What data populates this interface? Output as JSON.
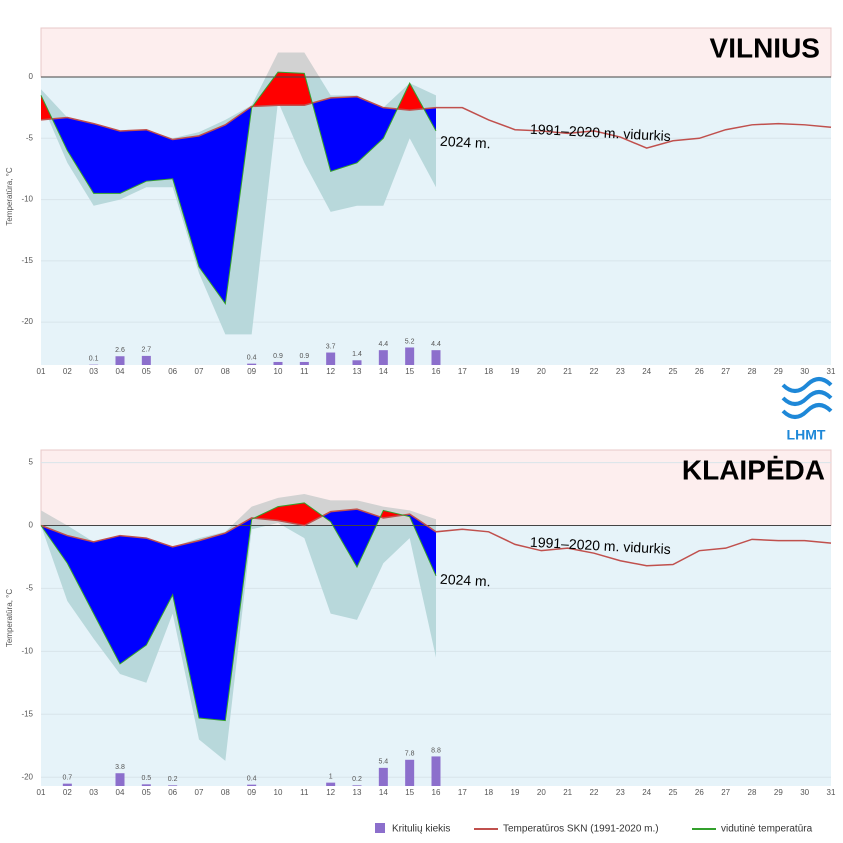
{
  "logo": "LHMT",
  "chart_data": [
    {
      "type": "line",
      "title": "VILNIUS",
      "y_label": "Temperatūra, °C",
      "categories": [
        "01",
        "02",
        "03",
        "04",
        "05",
        "06",
        "07",
        "08",
        "09",
        "10",
        "11",
        "12",
        "13",
        "14",
        "15",
        "16",
        "17",
        "18",
        "19",
        "20",
        "21",
        "22",
        "23",
        "24",
        "25",
        "26",
        "27",
        "28",
        "29",
        "30",
        "31"
      ],
      "ylim": [
        -23.5,
        4
      ],
      "yticks": [
        -20,
        -15,
        -10,
        -5,
        0
      ],
      "y2lim": [
        0,
        100
      ],
      "grid": true,
      "annotations": [
        "1991–2020 m. vidurkis",
        "2024 m."
      ],
      "fill_colors": {
        "above": "#ff0000",
        "below": "#0000ff"
      },
      "band": {
        "color_above": "#d2d2d2",
        "color_below": "#b8d8db",
        "low": [
          -2,
          -7,
          -10.5,
          -10,
          -9,
          -9,
          -16,
          -21,
          -21,
          -2,
          -7,
          -11,
          -10.5,
          -10.5,
          -5,
          -9,
          null,
          null,
          null,
          null,
          null,
          null,
          null,
          null,
          null,
          null,
          null,
          null,
          null,
          null,
          null
        ],
        "high": [
          -1,
          -3.3,
          -4,
          -4.4,
          -4.3,
          -5,
          -4.5,
          -3.5,
          -2.3,
          2,
          2,
          -1.5,
          -1.5,
          -2.5,
          -0.5,
          -1.5,
          null,
          null,
          null,
          null,
          null,
          null,
          null,
          null,
          null,
          null,
          null,
          null,
          null,
          null,
          null
        ]
      },
      "series": [
        {
          "type": "bar",
          "axis": "y2",
          "color": "#8c6fcc",
          "values": [
            null,
            null,
            0.1,
            2.6,
            2.7,
            null,
            null,
            null,
            0.4,
            0.9,
            0.9,
            3.7,
            1.4,
            4.4,
            5.2,
            4.4,
            null,
            null,
            null,
            null,
            null,
            null,
            null,
            null,
            null,
            null,
            null,
            null,
            null,
            null,
            null
          ]
        },
        {
          "type": "line",
          "color": "#c0504d",
          "values": [
            -3.5,
            -3.3,
            -3.8,
            -4.4,
            -4.3,
            -5.1,
            -4.8,
            -3.9,
            -2.4,
            -2.3,
            -2.3,
            -1.7,
            -1.6,
            -2.5,
            -2.7,
            -2.5,
            -2.5,
            -3.5,
            -4.3,
            -4.4,
            -4.6,
            -4.4,
            -4.9,
            -5.8,
            -5.2,
            -5.0,
            -4.3,
            -3.9,
            -3.8,
            -3.9,
            -4.1
          ]
        },
        {
          "type": "line",
          "color": "#33a02c",
          "values": [
            -1.5,
            -6,
            -9.5,
            -9.5,
            -8.5,
            -8.3,
            -15.5,
            -18.5,
            -2.5,
            0.4,
            0.3,
            -7.7,
            -7,
            -5,
            -0.5,
            -4.4,
            null,
            null,
            null,
            null,
            null,
            null,
            null,
            null,
            null,
            null,
            null,
            null,
            null,
            null,
            null
          ]
        }
      ]
    },
    {
      "type": "line",
      "title": "KLAIPĖDA",
      "y_label": "Temperatūra, °C",
      "categories": [
        "01",
        "02",
        "03",
        "04",
        "05",
        "06",
        "07",
        "08",
        "09",
        "10",
        "11",
        "12",
        "13",
        "14",
        "15",
        "16",
        "17",
        "18",
        "19",
        "20",
        "21",
        "22",
        "23",
        "24",
        "25",
        "26",
        "27",
        "28",
        "29",
        "30",
        "31"
      ],
      "ylim": [
        -20.7,
        6
      ],
      "yticks": [
        -20,
        -15,
        -10,
        -5,
        0,
        5
      ],
      "y2lim": [
        0,
        100
      ],
      "grid": true,
      "annotations": [
        "1991–2020 m. vidurkis",
        "2024 m."
      ],
      "fill_colors": {
        "above": "#ff0000",
        "below": "#0000ff"
      },
      "band": {
        "color_above": "#d2d2d2",
        "color_below": "#b8d8db",
        "low": [
          0,
          -6,
          -9,
          -11.8,
          -12.5,
          -7,
          -17,
          -18.7,
          -0.3,
          0.2,
          -1,
          -7,
          -7.5,
          -3,
          -1,
          -10.5,
          null,
          null,
          null,
          null,
          null,
          null,
          null,
          null,
          null,
          null,
          null,
          null,
          null,
          null,
          null
        ],
        "high": [
          1.2,
          0,
          -1.3,
          -0.8,
          -1,
          -1.7,
          -1,
          -0.5,
          1.5,
          2.2,
          2.5,
          2,
          2,
          1.5,
          1.2,
          0.5,
          null,
          null,
          null,
          null,
          null,
          null,
          null,
          null,
          null,
          null,
          null,
          null,
          null,
          null,
          null
        ]
      },
      "series": [
        {
          "name": "Kritulių kiekis",
          "type": "bar",
          "axis": "y2",
          "color": "#8c6fcc",
          "values": [
            null,
            0.7,
            null,
            3.8,
            0.5,
            0.2,
            null,
            null,
            0.4,
            null,
            null,
            1,
            0.2,
            5.4,
            7.8,
            8.8,
            null,
            null,
            null,
            null,
            null,
            null,
            null,
            null,
            null,
            null,
            null,
            null,
            null,
            null,
            null
          ]
        },
        {
          "name": "Temperatūros SKN (1991-2020 m.)",
          "type": "line",
          "color": "#c0504d",
          "values": [
            0,
            -0.8,
            -1.3,
            -0.8,
            -1.0,
            -1.7,
            -1.2,
            -0.6,
            0.6,
            0.4,
            0,
            1.1,
            1.3,
            0.6,
            0.9,
            -0.5,
            -0.3,
            -0.5,
            -1.5,
            -2.0,
            -1.8,
            -2.2,
            -2.8,
            -3.2,
            -3.1,
            -2.0,
            -1.8,
            -1.1,
            -1.2,
            -1.2,
            -1.4
          ]
        },
        {
          "name": "vidutinė temperatūra",
          "type": "line",
          "color": "#33a02c",
          "values": [
            0,
            -3,
            -7,
            -11,
            -9.5,
            -5.5,
            -15.3,
            -15.5,
            0.5,
            1.5,
            1.8,
            0.3,
            -3.3,
            1.2,
            0.7,
            -4,
            null,
            null,
            null,
            null,
            null,
            null,
            null,
            null,
            null,
            null,
            null,
            null,
            null,
            null,
            null
          ]
        }
      ]
    }
  ]
}
